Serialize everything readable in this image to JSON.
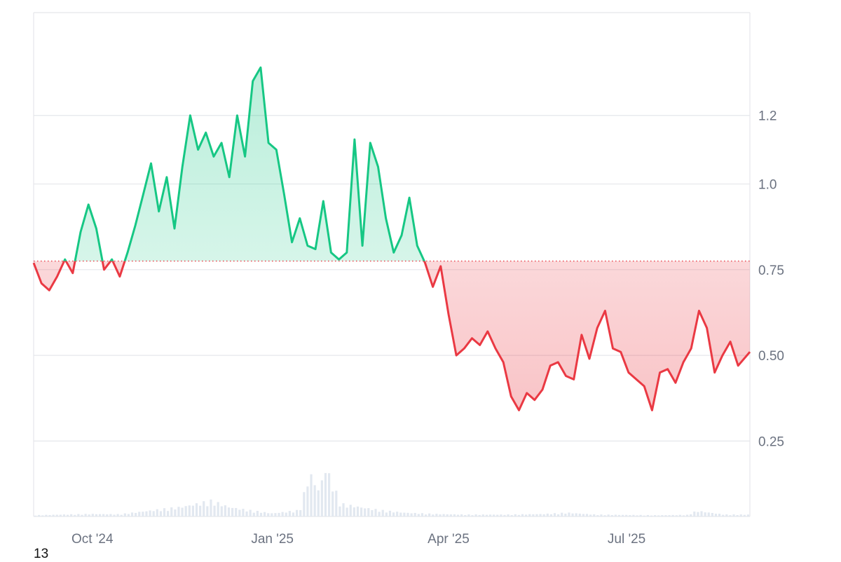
{
  "corner_text": "13",
  "colors": {
    "up": "#16c784",
    "down": "#ea3943",
    "baseline": "#ea3943",
    "grid": "#e5e7eb",
    "volume": "#e2e8f0",
    "axis_text": "#6b7280"
  },
  "chart_data": {
    "type": "area",
    "baseline": 0.775,
    "ylim": [
      0.03,
      1.5
    ],
    "y_ticks": [
      1.2,
      1.0,
      0.75,
      0.5,
      0.25
    ],
    "y_tick_labels": [
      "1.2",
      "1.0",
      "0.75",
      "0.50",
      "0.25"
    ],
    "x_range": [
      "2024-09-01",
      "2025-09-02"
    ],
    "x_ticks": [
      {
        "date": "2024-10-01",
        "label": "Oct '24"
      },
      {
        "date": "2025-01-01",
        "label": "Jan '25"
      },
      {
        "date": "2025-04-01",
        "label": "Apr '25"
      },
      {
        "date": "2025-07-01",
        "label": "Jul '25"
      }
    ],
    "grid": true,
    "price_series": {
      "x": [
        "2024-09-01",
        "2024-09-05",
        "2024-09-09",
        "2024-09-13",
        "2024-09-17",
        "2024-09-21",
        "2024-09-25",
        "2024-09-29",
        "2024-10-03",
        "2024-10-07",
        "2024-10-11",
        "2024-10-15",
        "2024-10-19",
        "2024-10-23",
        "2024-10-27",
        "2024-10-31",
        "2024-11-04",
        "2024-11-08",
        "2024-11-12",
        "2024-11-16",
        "2024-11-20",
        "2024-11-24",
        "2024-11-28",
        "2024-12-02",
        "2024-12-06",
        "2024-12-10",
        "2024-12-14",
        "2024-12-18",
        "2024-12-22",
        "2024-12-26",
        "2024-12-30",
        "2025-01-03",
        "2025-01-07",
        "2025-01-11",
        "2025-01-15",
        "2025-01-19",
        "2025-01-23",
        "2025-01-27",
        "2025-01-31",
        "2025-02-04",
        "2025-02-08",
        "2025-02-12",
        "2025-02-16",
        "2025-02-20",
        "2025-02-24",
        "2025-02-28",
        "2025-03-04",
        "2025-03-08",
        "2025-03-12",
        "2025-03-16",
        "2025-03-20",
        "2025-03-24",
        "2025-03-28",
        "2025-04-01",
        "2025-04-05",
        "2025-04-09",
        "2025-04-13",
        "2025-04-17",
        "2025-04-21",
        "2025-04-25",
        "2025-04-29",
        "2025-05-03",
        "2025-05-07",
        "2025-05-11",
        "2025-05-15",
        "2025-05-19",
        "2025-05-23",
        "2025-05-27",
        "2025-05-31",
        "2025-06-04",
        "2025-06-08",
        "2025-06-12",
        "2025-06-16",
        "2025-06-20",
        "2025-06-24",
        "2025-06-28",
        "2025-07-02",
        "2025-07-06",
        "2025-07-10",
        "2025-07-14",
        "2025-07-18",
        "2025-07-22",
        "2025-07-26",
        "2025-07-30",
        "2025-08-03",
        "2025-08-07",
        "2025-08-11",
        "2025-08-15",
        "2025-08-19",
        "2025-08-23",
        "2025-08-27",
        "2025-09-02"
      ],
      "y": [
        0.77,
        0.71,
        0.69,
        0.73,
        0.78,
        0.74,
        0.86,
        0.94,
        0.87,
        0.75,
        0.78,
        0.73,
        0.8,
        0.88,
        0.97,
        1.06,
        0.92,
        1.02,
        0.87,
        1.05,
        1.2,
        1.1,
        1.15,
        1.08,
        1.12,
        1.02,
        1.2,
        1.08,
        1.3,
        1.34,
        1.12,
        1.1,
        0.97,
        0.83,
        0.9,
        0.82,
        0.81,
        0.95,
        0.8,
        0.78,
        0.8,
        1.13,
        0.82,
        1.12,
        1.05,
        0.9,
        0.8,
        0.85,
        0.96,
        0.82,
        0.77,
        0.7,
        0.76,
        0.62,
        0.5,
        0.52,
        0.55,
        0.53,
        0.57,
        0.52,
        0.48,
        0.38,
        0.34,
        0.39,
        0.37,
        0.4,
        0.47,
        0.48,
        0.44,
        0.43,
        0.56,
        0.49,
        0.58,
        0.63,
        0.52,
        0.51,
        0.45,
        0.43,
        0.41,
        0.34,
        0.45,
        0.46,
        0.42,
        0.48,
        0.52,
        0.63,
        0.58,
        0.45,
        0.5,
        0.54,
        0.47,
        0.51
      ]
    },
    "volume_series": {
      "x": [
        "2024-09-01",
        "2024-09-15",
        "2024-10-01",
        "2024-10-15",
        "2024-11-01",
        "2024-11-15",
        "2024-12-01",
        "2024-12-10",
        "2024-12-20",
        "2025-01-01",
        "2025-01-15",
        "2025-01-20",
        "2025-01-25",
        "2025-01-28",
        "2025-02-05",
        "2025-02-15",
        "2025-02-25",
        "2025-03-10",
        "2025-03-25",
        "2025-04-10",
        "2025-05-01",
        "2025-05-20",
        "2025-06-01",
        "2025-06-15",
        "2025-07-01",
        "2025-07-15",
        "2025-08-01",
        "2025-08-06",
        "2025-08-20",
        "2025-09-02"
      ],
      "y": [
        0.004,
        0.006,
        0.008,
        0.007,
        0.02,
        0.03,
        0.05,
        0.03,
        0.02,
        0.01,
        0.02,
        0.14,
        0.08,
        0.16,
        0.04,
        0.03,
        0.02,
        0.012,
        0.008,
        0.006,
        0.006,
        0.008,
        0.012,
        0.006,
        0.005,
        0.004,
        0.005,
        0.018,
        0.006,
        0.006
      ]
    }
  }
}
